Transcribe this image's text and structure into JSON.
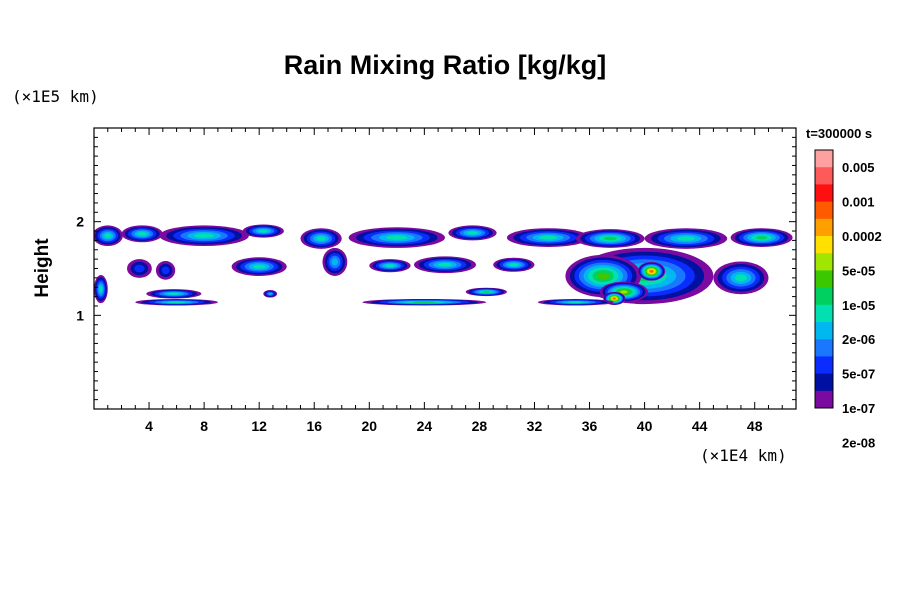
{
  "chart_data": {
    "type": "heatmap",
    "title": "Rain Mixing Ratio [kg/kg]",
    "xlabel": "",
    "ylabel": "Height",
    "x_unit": "(×1E4 km)",
    "y_unit": "(×1E5 km)",
    "xlim": [
      0,
      51
    ],
    "ylim": [
      0,
      3
    ],
    "x_ticks": [
      4,
      8,
      12,
      16,
      20,
      24,
      28,
      32,
      36,
      40,
      44,
      48
    ],
    "y_ticks": [
      1,
      2
    ],
    "grid": false,
    "legend": "right",
    "time_label": "t=300000 s",
    "colorbar_labels": [
      "0.005",
      "0.001",
      "0.0002",
      "5e-05",
      "1e-05",
      "2e-06",
      "5e-07",
      "1e-07",
      "2e-08"
    ],
    "colorbar_colors": [
      "#ffa0a0",
      "#ff5a5a",
      "#ff1010",
      "#ff5a00",
      "#ffa000",
      "#ffe000",
      "#a0e600",
      "#3cc800",
      "#00d060",
      "#00e0b0",
      "#00b8f0",
      "#1a78ff",
      "#0a2cff",
      "#0010a0",
      "#7a0aa0"
    ],
    "cells": [
      {
        "x": 1.0,
        "y": 1.85,
        "w": 2.2,
        "h": 0.22,
        "level": 5
      },
      {
        "x": 3.5,
        "y": 1.87,
        "w": 3.0,
        "h": 0.18,
        "level": 5
      },
      {
        "x": 8.0,
        "y": 1.85,
        "w": 6.5,
        "h": 0.22,
        "level": 5
      },
      {
        "x": 12.3,
        "y": 1.9,
        "w": 3.0,
        "h": 0.14,
        "level": 5
      },
      {
        "x": 16.5,
        "y": 1.82,
        "w": 3.0,
        "h": 0.22,
        "level": 5
      },
      {
        "x": 22.0,
        "y": 1.83,
        "w": 7.0,
        "h": 0.22,
        "level": 5
      },
      {
        "x": 27.5,
        "y": 1.88,
        "w": 3.5,
        "h": 0.16,
        "level": 5
      },
      {
        "x": 33.0,
        "y": 1.83,
        "w": 6.0,
        "h": 0.2,
        "level": 5
      },
      {
        "x": 37.5,
        "y": 1.82,
        "w": 5.0,
        "h": 0.2,
        "level": 6
      },
      {
        "x": 43.0,
        "y": 1.82,
        "w": 6.0,
        "h": 0.22,
        "level": 5
      },
      {
        "x": 48.5,
        "y": 1.83,
        "w": 4.5,
        "h": 0.2,
        "level": 6
      },
      {
        "x": 3.3,
        "y": 1.5,
        "w": 1.8,
        "h": 0.2,
        "level": 2
      },
      {
        "x": 5.2,
        "y": 1.48,
        "w": 1.4,
        "h": 0.2,
        "level": 2
      },
      {
        "x": 12.0,
        "y": 1.52,
        "w": 4.0,
        "h": 0.2,
        "level": 5
      },
      {
        "x": 17.5,
        "y": 1.57,
        "w": 1.8,
        "h": 0.3,
        "level": 4
      },
      {
        "x": 21.5,
        "y": 1.53,
        "w": 3.0,
        "h": 0.14,
        "level": 5
      },
      {
        "x": 25.5,
        "y": 1.54,
        "w": 4.5,
        "h": 0.18,
        "level": 5
      },
      {
        "x": 30.5,
        "y": 1.54,
        "w": 3.0,
        "h": 0.15,
        "level": 5
      },
      {
        "x": 0.5,
        "y": 1.28,
        "w": 1.0,
        "h": 0.3,
        "level": 5
      },
      {
        "x": 40.0,
        "y": 1.42,
        "w": 10.0,
        "h": 0.6,
        "level": 6
      },
      {
        "x": 37.0,
        "y": 1.42,
        "w": 5.5,
        "h": 0.45,
        "level": 7
      },
      {
        "x": 40.5,
        "y": 1.47,
        "w": 2.0,
        "h": 0.2,
        "level": 11
      },
      {
        "x": 38.5,
        "y": 1.25,
        "w": 3.5,
        "h": 0.22,
        "level": 8
      },
      {
        "x": 37.8,
        "y": 1.18,
        "w": 1.6,
        "h": 0.14,
        "level": 11
      },
      {
        "x": 47.0,
        "y": 1.4,
        "w": 4.0,
        "h": 0.35,
        "level": 5
      },
      {
        "x": 5.8,
        "y": 1.23,
        "w": 4.0,
        "h": 0.1,
        "level": 5
      },
      {
        "x": 6.0,
        "y": 1.14,
        "w": 6.0,
        "h": 0.07,
        "level": 5
      },
      {
        "x": 12.8,
        "y": 1.23,
        "w": 1.0,
        "h": 0.08,
        "level": 4
      },
      {
        "x": 24.0,
        "y": 1.14,
        "w": 9.0,
        "h": 0.07,
        "level": 6
      },
      {
        "x": 28.5,
        "y": 1.25,
        "w": 3.0,
        "h": 0.09,
        "level": 6
      },
      {
        "x": 35.0,
        "y": 1.14,
        "w": 5.5,
        "h": 0.07,
        "level": 5
      }
    ]
  }
}
